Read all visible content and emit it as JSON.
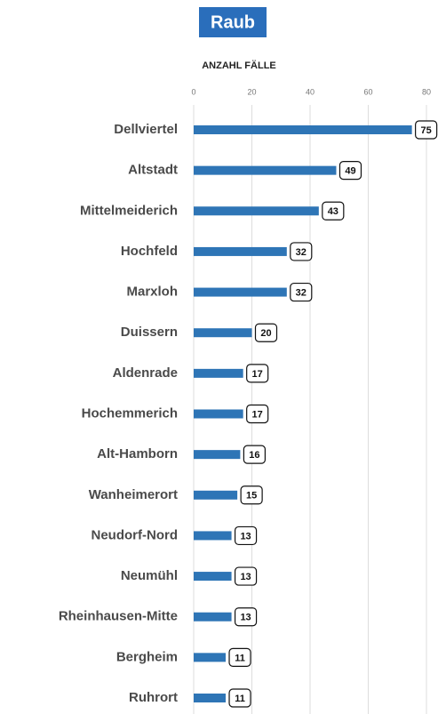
{
  "chart_data": {
    "type": "bar",
    "orientation": "horizontal",
    "title": "Raub",
    "x_label": "ANZAHL FÄLLE",
    "categories": [
      "Dellviertel",
      "Altstadt",
      "Mittelmeiderich",
      "Hochfeld",
      "Marxloh",
      "Duissern",
      "Aldenrade",
      "Hochemmerich",
      "Alt-Hamborn",
      "Wanheimerort",
      "Neudorf-Nord",
      "Neumühl",
      "Rheinhausen-Mitte",
      "Bergheim",
      "Ruhrort"
    ],
    "values": [
      75,
      49,
      43,
      32,
      32,
      20,
      17,
      17,
      16,
      15,
      13,
      13,
      13,
      11,
      11
    ],
    "color": "#2e75b6",
    "xlim": [
      0,
      80
    ],
    "xticks": [
      0,
      20,
      40,
      60,
      80
    ],
    "grid": true
  }
}
